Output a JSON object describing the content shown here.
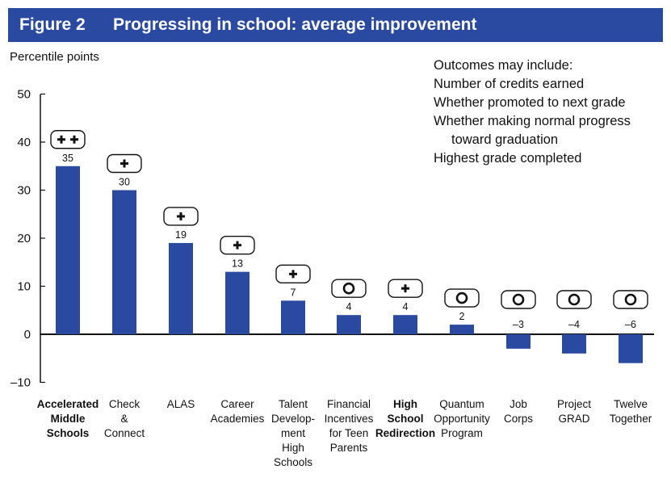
{
  "header": {
    "figure_label": "Figure 2",
    "title": "Progressing in school: average improvement"
  },
  "notes": {
    "heading": "Outcomes may include:",
    "items": [
      "Number of credits earned",
      "Whether promoted to next grade",
      "Whether making normal progress",
      "toward graduation",
      "Highest grade completed"
    ]
  },
  "colors": {
    "bar": "#2a49a0",
    "title_bg": "#2a49a0"
  },
  "chart_data": {
    "type": "bar",
    "title": "Progressing in school: average improvement",
    "ylabel": "Percentile points",
    "xlabel": "",
    "ylim": [
      -10,
      50
    ],
    "yticks": [
      -10,
      0,
      10,
      20,
      30,
      40,
      50
    ],
    "ytick_labels": [
      "–10",
      "0",
      "10",
      "20",
      "30",
      "40",
      "50"
    ],
    "categories": [
      "Accelerated Middle Schools",
      "Check & Connect",
      "ALAS",
      "Career Academies",
      "Talent Development High Schools",
      "Financial Incentives for Teen Parents",
      "High School Redirection",
      "Quantum Opportunity Program",
      "Job Corps",
      "Project GRAD",
      "Twelve Together"
    ],
    "category_lines": [
      [
        "Accelerated",
        "Middle",
        "Schools"
      ],
      [
        "Check",
        "&",
        "Connect"
      ],
      [
        "ALAS"
      ],
      [
        "Career",
        "Academies"
      ],
      [
        "Talent",
        "Develop-",
        "ment",
        "High",
        "Schools"
      ],
      [
        "Financial",
        "Incentives",
        "for Teen",
        "Parents"
      ],
      [
        "High",
        "School",
        "Redirection"
      ],
      [
        "Quantum",
        "Opportunity",
        "Program"
      ],
      [
        "Job",
        "Corps"
      ],
      [
        "Project",
        "GRAD"
      ],
      [
        "Twelve",
        "Together"
      ]
    ],
    "bold_categories": [
      0,
      6
    ],
    "values": [
      35,
      30,
      19,
      13,
      7,
      4,
      4,
      2,
      -3,
      -4,
      -6
    ],
    "value_labels": [
      "35",
      "30",
      "19",
      "13",
      "7",
      "4",
      "4",
      "2",
      "–3",
      "–4",
      "–6"
    ],
    "ratings": [
      "++",
      "+",
      "+",
      "+",
      "+",
      "O",
      "+",
      "O",
      "O",
      "O",
      "O"
    ]
  }
}
